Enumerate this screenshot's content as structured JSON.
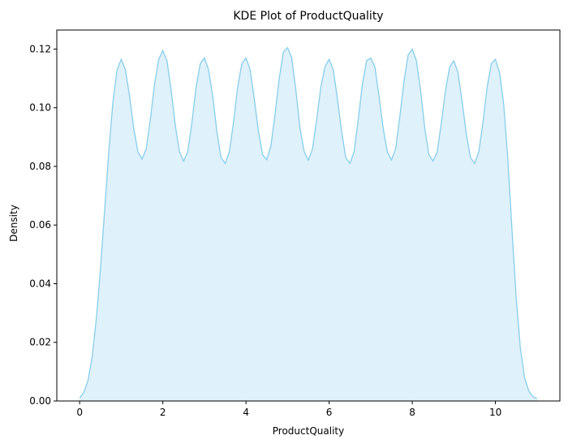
{
  "chart_data": {
    "type": "area",
    "title": "KDE Plot of ProductQuality",
    "xlabel": "ProductQuality",
    "ylabel": "Density",
    "xlim": [
      -0.55,
      11.55
    ],
    "ylim": [
      0,
      0.1265
    ],
    "xticks": [
      0,
      2,
      4,
      6,
      8,
      10
    ],
    "xtick_labels": [
      "0",
      "2",
      "4",
      "6",
      "8",
      "10"
    ],
    "yticks": [
      0.0,
      0.02,
      0.04,
      0.06,
      0.08,
      0.1,
      0.12
    ],
    "ytick_labels": [
      "0.00",
      "0.02",
      "0.04",
      "0.06",
      "0.08",
      "0.10",
      "0.12"
    ],
    "grid": false,
    "series": [
      {
        "line_color": "#87ceeb",
        "fill_color": "#dff1fa",
        "x": [
          0,
          0.1,
          0.2,
          0.3,
          0.4,
          0.5,
          0.6,
          0.7,
          0.8,
          0.9,
          1.0,
          1.1,
          1.2,
          1.3,
          1.4,
          1.5,
          1.6,
          1.7,
          1.8,
          1.9,
          2.0,
          2.1,
          2.2,
          2.3,
          2.4,
          2.5,
          2.6,
          2.7,
          2.8,
          2.9,
          3.0,
          3.1,
          3.2,
          3.3,
          3.4,
          3.5,
          3.6,
          3.7,
          3.8,
          3.9,
          4.0,
          4.1,
          4.2,
          4.3,
          4.4,
          4.5,
          4.6,
          4.7,
          4.8,
          4.9,
          5.0,
          5.1,
          5.2,
          5.3,
          5.4,
          5.5,
          5.6,
          5.7,
          5.8,
          5.9,
          6.0,
          6.1,
          6.2,
          6.3,
          6.4,
          6.5,
          6.6,
          6.7,
          6.8,
          6.9,
          7.0,
          7.1,
          7.2,
          7.3,
          7.4,
          7.5,
          7.6,
          7.7,
          7.8,
          7.9,
          8.0,
          8.1,
          8.2,
          8.3,
          8.4,
          8.5,
          8.6,
          8.7,
          8.8,
          8.9,
          9.0,
          9.1,
          9.2,
          9.3,
          9.4,
          9.5,
          9.6,
          9.7,
          9.8,
          9.9,
          10.0,
          10.1,
          10.2,
          10.3,
          10.4,
          10.5,
          10.6,
          10.7,
          10.8,
          10.9,
          11.0
        ],
        "y": [
          0.001,
          0.003,
          0.007,
          0.015,
          0.028,
          0.045,
          0.065,
          0.085,
          0.102,
          0.113,
          0.1165,
          0.113,
          0.104,
          0.093,
          0.085,
          0.0825,
          0.086,
          0.096,
          0.108,
          0.1165,
          0.1195,
          0.116,
          0.106,
          0.094,
          0.085,
          0.0818,
          0.085,
          0.095,
          0.107,
          0.115,
          0.117,
          0.113,
          0.104,
          0.092,
          0.083,
          0.081,
          0.085,
          0.095,
          0.107,
          0.115,
          0.117,
          0.113,
          0.103,
          0.092,
          0.084,
          0.0823,
          0.087,
          0.098,
          0.11,
          0.119,
          0.1205,
          0.117,
          0.106,
          0.093,
          0.085,
          0.0821,
          0.086,
          0.096,
          0.107,
          0.114,
          0.1165,
          0.113,
          0.103,
          0.092,
          0.083,
          0.081,
          0.085,
          0.096,
          0.108,
          0.116,
          0.117,
          0.114,
          0.104,
          0.093,
          0.085,
          0.0822,
          0.086,
          0.097,
          0.109,
          0.118,
          0.12,
          0.116,
          0.106,
          0.093,
          0.084,
          0.0818,
          0.085,
          0.095,
          0.106,
          0.114,
          0.116,
          0.112,
          0.102,
          0.091,
          0.083,
          0.081,
          0.085,
          0.095,
          0.107,
          0.115,
          0.1165,
          0.112,
          0.101,
          0.082,
          0.058,
          0.035,
          0.018,
          0.008,
          0.0035,
          0.0015,
          0.0008
        ]
      }
    ]
  }
}
